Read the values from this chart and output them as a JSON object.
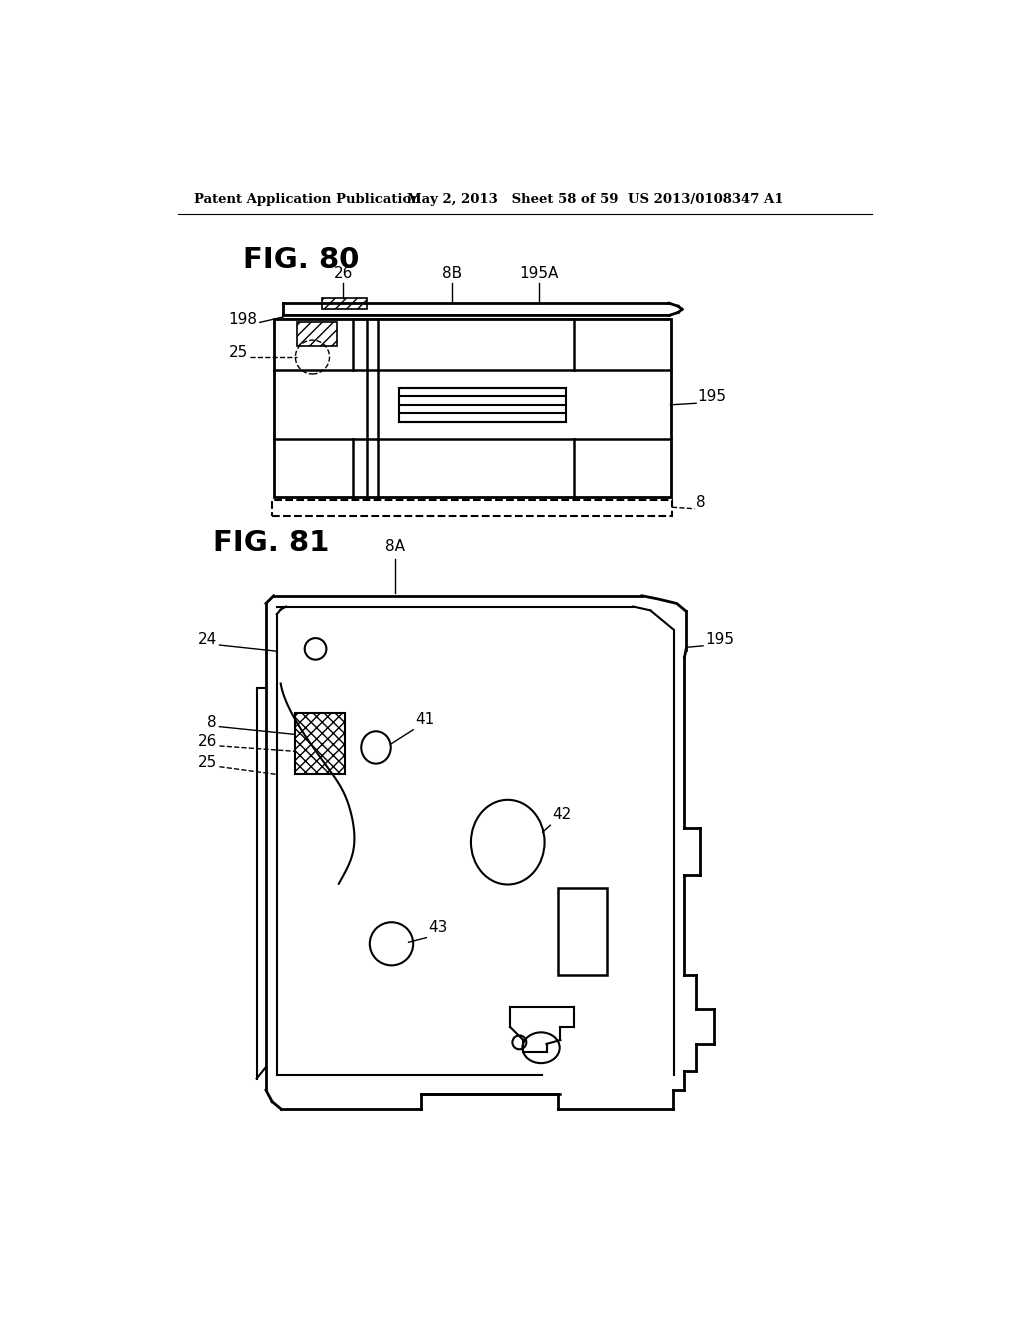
{
  "header_left": "Patent Application Publication",
  "header_mid": "May 2, 2013   Sheet 58 of 59",
  "header_right": "US 2013/0108347 A1",
  "fig80_title": "FIG. 80",
  "fig81_title": "FIG. 81",
  "bg_color": "#ffffff",
  "line_color": "#000000"
}
